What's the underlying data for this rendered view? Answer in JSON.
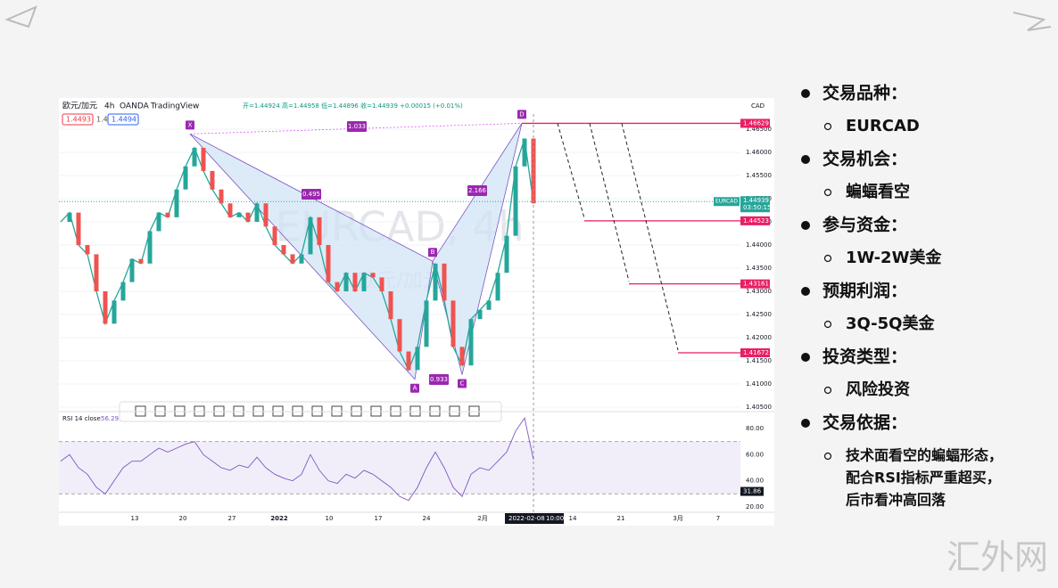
{
  "screenshot": {
    "symbol": "欧元/加元",
    "interval": "4h",
    "source": "OANDA",
    "platform": "TradingView",
    "ohlc": "开=1.44924 高=1.44958 低=1.44896 收=1.44939 +0.00015 (+0.01%)",
    "bid": "1.4493",
    "spread": "1.4",
    "ask": "1.4494",
    "currency": "CAD",
    "watermark_symbol": "EURCAD, 4h",
    "watermark_name": "欧元/加元",
    "ylim": [
      1.4044,
      1.4683
    ],
    "yticks": [
      {
        "value": 1.465,
        "label": "1.46500"
      },
      {
        "value": 1.46,
        "label": "1.46000"
      },
      {
        "value": 1.455,
        "label": "1.45500"
      },
      {
        "value": 1.45,
        "label": "1.45000"
      },
      {
        "value": 1.445,
        "label": "1.44500"
      },
      {
        "value": 1.44,
        "label": "1.44000"
      },
      {
        "value": 1.435,
        "label": "1.43500"
      },
      {
        "value": 1.43,
        "label": "1.43000"
      },
      {
        "value": 1.425,
        "label": "1.42500"
      },
      {
        "value": 1.42,
        "label": "1.42000"
      },
      {
        "value": 1.415,
        "label": "1.41500"
      },
      {
        "value": 1.41,
        "label": "1.41000"
      },
      {
        "value": 1.405,
        "label": "1.40500"
      }
    ],
    "closes": [
      1.445,
      1.447,
      1.44,
      1.438,
      1.43,
      1.423,
      1.428,
      1.432,
      1.437,
      1.436,
      1.443,
      1.447,
      1.446,
      1.452,
      1.457,
      1.461,
      1.456,
      1.452,
      1.449,
      1.446,
      1.447,
      1.445,
      1.449,
      1.444,
      1.44,
      1.438,
      1.436,
      1.438,
      1.446,
      1.44,
      1.432,
      1.43,
      1.434,
      1.43,
      1.434,
      1.433,
      1.43,
      1.424,
      1.417,
      1.413,
      1.418,
      1.428,
      1.436,
      1.428,
      1.418,
      1.414,
      1.424,
      1.426,
      1.428,
      1.434,
      1.442,
      1.457,
      1.463,
      1.449
    ],
    "pattern_points": [
      {
        "label": "X",
        "price": 1.464
      },
      {
        "label": "A",
        "price": 1.411
      },
      {
        "label": "B",
        "price": 1.4365
      },
      {
        "label": "C",
        "price": 1.412
      },
      {
        "label": "D",
        "price": 1.4663
      }
    ],
    "ratios": [
      "1.033",
      "0.495",
      "2.166",
      "0.933"
    ],
    "levels": [
      1.46629,
      1.44523,
      1.43161,
      1.41672
    ],
    "current": {
      "symbol": "EURCAD",
      "price": 1.44939,
      "countdown": "03:50:15"
    },
    "rsi": {
      "label": "RSI 14 close",
      "value": 56.29,
      "ylim": [
        15.9,
        90.9
      ],
      "yticks": [
        {
          "value": 80,
          "label": "80.00"
        },
        {
          "value": 60,
          "label": "60.00"
        },
        {
          "value": 40,
          "label": "40.00"
        },
        {
          "value": 20,
          "label": "20.00"
        }
      ],
      "band": [
        30,
        70
      ],
      "marker": 31.86,
      "values": [
        55,
        60,
        50,
        45,
        35,
        30,
        40,
        50,
        55,
        55,
        60,
        65,
        62,
        65,
        68,
        70,
        60,
        55,
        50,
        48,
        52,
        50,
        58,
        50,
        45,
        42,
        40,
        45,
        60,
        48,
        40,
        38,
        45,
        42,
        48,
        45,
        40,
        35,
        28,
        25,
        35,
        50,
        62,
        50,
        35,
        28,
        45,
        50,
        48,
        55,
        62,
        78,
        88,
        56.29
      ]
    },
    "xticks": [
      "13",
      "20",
      "27",
      "2022",
      "10",
      "17",
      "24",
      "2月",
      "14",
      "21",
      "3月",
      "7"
    ],
    "crosshair_date": "2022-02-08",
    "crosshair_time": "10:00"
  },
  "bullets": [
    {
      "title": "交易品种：",
      "sub": [
        "EURCAD"
      ]
    },
    {
      "title": "交易机会：",
      "sub": [
        "蝙蝠看空"
      ]
    },
    {
      "title": "参与资金：",
      "sub": [
        "1W-2W美金"
      ]
    },
    {
      "title": "预期利润：",
      "sub": [
        "3Q-5Q美金"
      ]
    },
    {
      "title": "投资类型：",
      "sub": [
        "风险投资"
      ]
    },
    {
      "title": "交易依据：",
      "sub": [
        "技术面看空的蝙蝠形态，",
        "配合RSI指标严重超买，",
        "后市看冲高回落"
      ]
    }
  ],
  "watermark": "汇外网"
}
